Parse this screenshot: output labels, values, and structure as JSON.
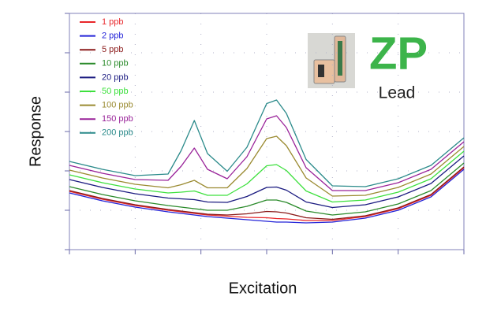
{
  "chart_data": {
    "type": "line",
    "xlabel": "Excitation",
    "ylabel": "Response",
    "x": [
      0,
      0.5,
      1,
      1.5,
      1.7,
      1.9,
      2.1,
      2.4,
      2.7,
      3.0,
      3.15,
      3.3,
      3.6,
      4,
      4.5,
      5,
      5.5,
      6
    ],
    "xlim": [
      0,
      6
    ],
    "ylim": [
      0,
      6
    ],
    "xticks": [
      0,
      1,
      2,
      3,
      4,
      5,
      6
    ],
    "yticks": [
      0,
      1,
      2,
      3,
      4,
      5,
      6
    ],
    "grid": true,
    "legend": "upper left",
    "series": [
      {
        "name": "1 ppb",
        "color": "#e8262a",
        "values": [
          1.48,
          1.28,
          1.12,
          1.0,
          0.96,
          0.92,
          0.88,
          0.85,
          0.82,
          0.81,
          0.79,
          0.78,
          0.74,
          0.74,
          0.84,
          1.04,
          1.38,
          2.08
        ]
      },
      {
        "name": "2 ppb",
        "color": "#2323d8",
        "values": [
          1.44,
          1.24,
          1.08,
          0.96,
          0.92,
          0.88,
          0.84,
          0.8,
          0.76,
          0.72,
          0.7,
          0.7,
          0.68,
          0.7,
          0.8,
          1.0,
          1.34,
          2.04
        ]
      },
      {
        "name": "5 ppb",
        "color": "#8b1a1a",
        "values": [
          1.5,
          1.3,
          1.14,
          1.02,
          0.98,
          0.94,
          0.9,
          0.88,
          0.91,
          0.97,
          0.96,
          0.93,
          0.81,
          0.77,
          0.86,
          1.06,
          1.4,
          2.1
        ]
      },
      {
        "name": "10 ppb",
        "color": "#2a8a2a",
        "values": [
          1.6,
          1.4,
          1.24,
          1.12,
          1.08,
          1.04,
          1.0,
          1.0,
          1.1,
          1.26,
          1.26,
          1.2,
          0.98,
          0.88,
          0.96,
          1.16,
          1.5,
          2.2
        ]
      },
      {
        "name": "20 ppb",
        "color": "#1a1a80",
        "values": [
          1.78,
          1.58,
          1.42,
          1.31,
          1.29,
          1.27,
          1.21,
          1.2,
          1.35,
          1.58,
          1.59,
          1.51,
          1.21,
          1.07,
          1.14,
          1.34,
          1.68,
          2.38
        ]
      },
      {
        "name": "50 ppb",
        "color": "#3de03d",
        "values": [
          1.9,
          1.7,
          1.54,
          1.44,
          1.46,
          1.49,
          1.38,
          1.38,
          1.67,
          2.13,
          2.16,
          2.01,
          1.49,
          1.21,
          1.26,
          1.46,
          1.8,
          2.5
        ]
      },
      {
        "name": "100 ppb",
        "color": "#9a8a30",
        "values": [
          2.02,
          1.82,
          1.66,
          1.57,
          1.65,
          1.76,
          1.57,
          1.57,
          2.06,
          2.82,
          2.88,
          2.64,
          1.82,
          1.36,
          1.38,
          1.58,
          1.92,
          2.62
        ]
      },
      {
        "name": "150 ppb",
        "color": "#992299",
        "values": [
          2.14,
          1.94,
          1.78,
          1.76,
          2.12,
          2.58,
          2.04,
          1.8,
          2.36,
          3.32,
          3.4,
          3.1,
          2.08,
          1.5,
          1.5,
          1.7,
          2.04,
          2.74
        ]
      },
      {
        "name": "200 ppb",
        "color": "#2a8a8a",
        "values": [
          2.24,
          2.04,
          1.88,
          1.92,
          2.52,
          3.28,
          2.44,
          1.99,
          2.6,
          3.71,
          3.8,
          3.46,
          2.29,
          1.62,
          1.6,
          1.8,
          2.14,
          2.84
        ]
      }
    ]
  },
  "logo": {
    "mark": "ZP",
    "caption": "Lead"
  }
}
